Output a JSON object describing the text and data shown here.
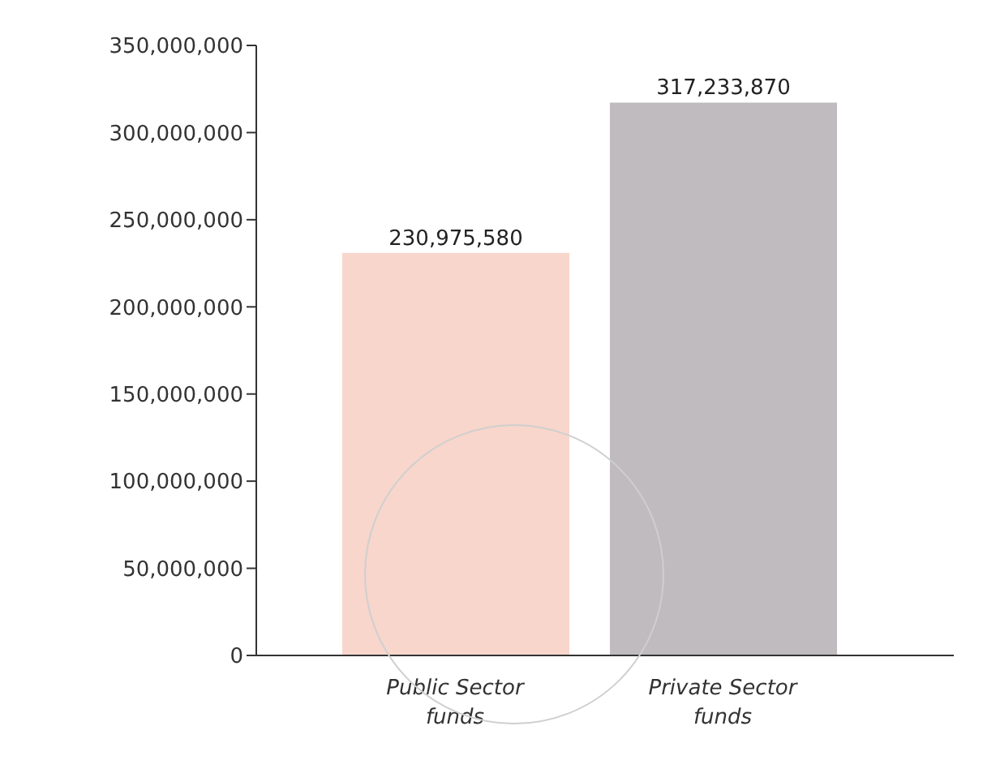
{
  "chart_data": {
    "type": "bar",
    "categories": [
      "Public Sector funds",
      "Private Sector funds"
    ],
    "values": [
      230975580,
      317233870
    ],
    "value_labels": [
      "230,975,580",
      "317,233,870"
    ],
    "colors": [
      "#f8d6cb",
      "#bfbbbf"
    ],
    "ylim": [
      0,
      350000000
    ],
    "yticks": [
      {
        "value": 0,
        "label": "0"
      },
      {
        "value": 50000000,
        "label": "50,000,000"
      },
      {
        "value": 100000000,
        "label": "100,000,000"
      },
      {
        "value": 150000000,
        "label": "150,000,000"
      },
      {
        "value": 200000000,
        "label": "200,000,000"
      },
      {
        "value": 250000000,
        "label": "250,000,000"
      },
      {
        "value": 300000000,
        "label": "300,000,000"
      },
      {
        "value": 350000000,
        "label": "350,000,000"
      }
    ]
  }
}
